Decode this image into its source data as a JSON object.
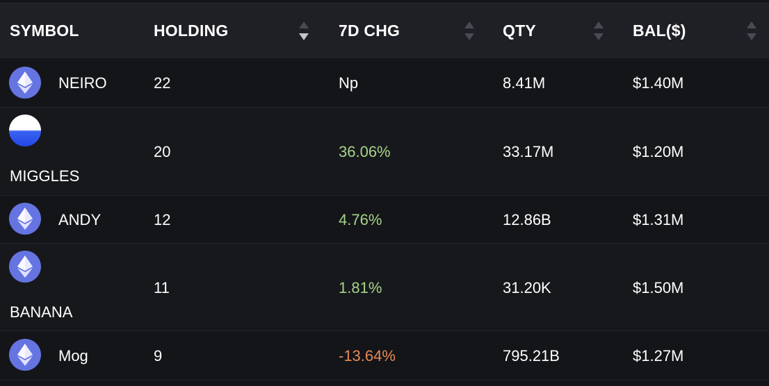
{
  "columns": {
    "symbol": "SYMBOL",
    "holding": "HOLDING",
    "chg7d": "7D CHG",
    "qty": "QTY",
    "bal": "BAL($)"
  },
  "rows": [
    {
      "symbol": "NEIRO",
      "icon": "ethereum-icon",
      "holding": "22",
      "chg7d": "Np",
      "qty": "8.41M",
      "bal": "$1.40M"
    },
    {
      "symbol": "MIGGLES",
      "icon": "miggles-icon",
      "holding": "20",
      "chg7d": "36.06%",
      "qty": "33.17M",
      "bal": "$1.20M"
    },
    {
      "symbol": "ANDY",
      "icon": "ethereum-icon",
      "holding": "12",
      "chg7d": "4.76%",
      "qty": "12.86B",
      "bal": "$1.31M"
    },
    {
      "symbol": "BANANA",
      "icon": "ethereum-icon",
      "holding": "11",
      "chg7d": "1.81%",
      "qty": "31.20K",
      "bal": "$1.50M"
    },
    {
      "symbol": "Mog",
      "icon": "ethereum-icon",
      "holding": "9",
      "chg7d": "-13.64%",
      "qty": "795.21B",
      "bal": "$1.27M"
    }
  ],
  "colors": {
    "positive": "#a6d48a",
    "negative": "#e58a55",
    "header_bg": "#1f2026",
    "page_bg": "#141519"
  }
}
